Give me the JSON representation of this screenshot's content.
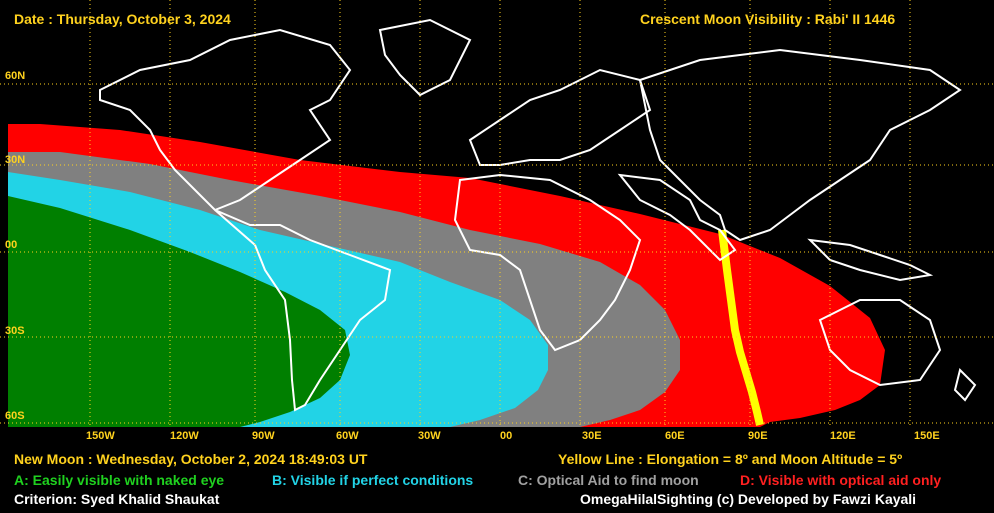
{
  "header": {
    "date": "Date : Thursday, October 3, 2024",
    "title": "Crescent Moon Visibility : Rabi' II  1446"
  },
  "lat_labels": [
    "60N",
    "30N",
    "00",
    "30S",
    "60S"
  ],
  "lon_labels": [
    "150W",
    "120W",
    "90W",
    "60W",
    "30W",
    "00",
    "30E",
    "60E",
    "90E",
    "120E",
    "150E"
  ],
  "footer": {
    "new_moon": "New Moon : Wednesday, October 2, 2024  18:49:03  UT",
    "yellow_line": "Yellow Line : Elongation = 8º  and Moon Altitude = 5º",
    "legend_a": "A: Easily visible with naked eye",
    "legend_b": "B: Visible if perfect conditions",
    "legend_c": "C: Optical Aid to find moon",
    "legend_d": "D: Visible with optical aid only",
    "criterion": "Criterion: Syed Khalid Shaukat",
    "credit": "OmegaHilalSighting  (c)  Developed by Fawzi Kayali"
  },
  "colors": {
    "zone_a": "#007f00",
    "zone_b": "#22d3e6",
    "zone_c": "#808080",
    "zone_d": "#ff0000",
    "yellow_line": "#ffff00",
    "grid": "#ffd21e",
    "coast": "#ffffff"
  }
}
